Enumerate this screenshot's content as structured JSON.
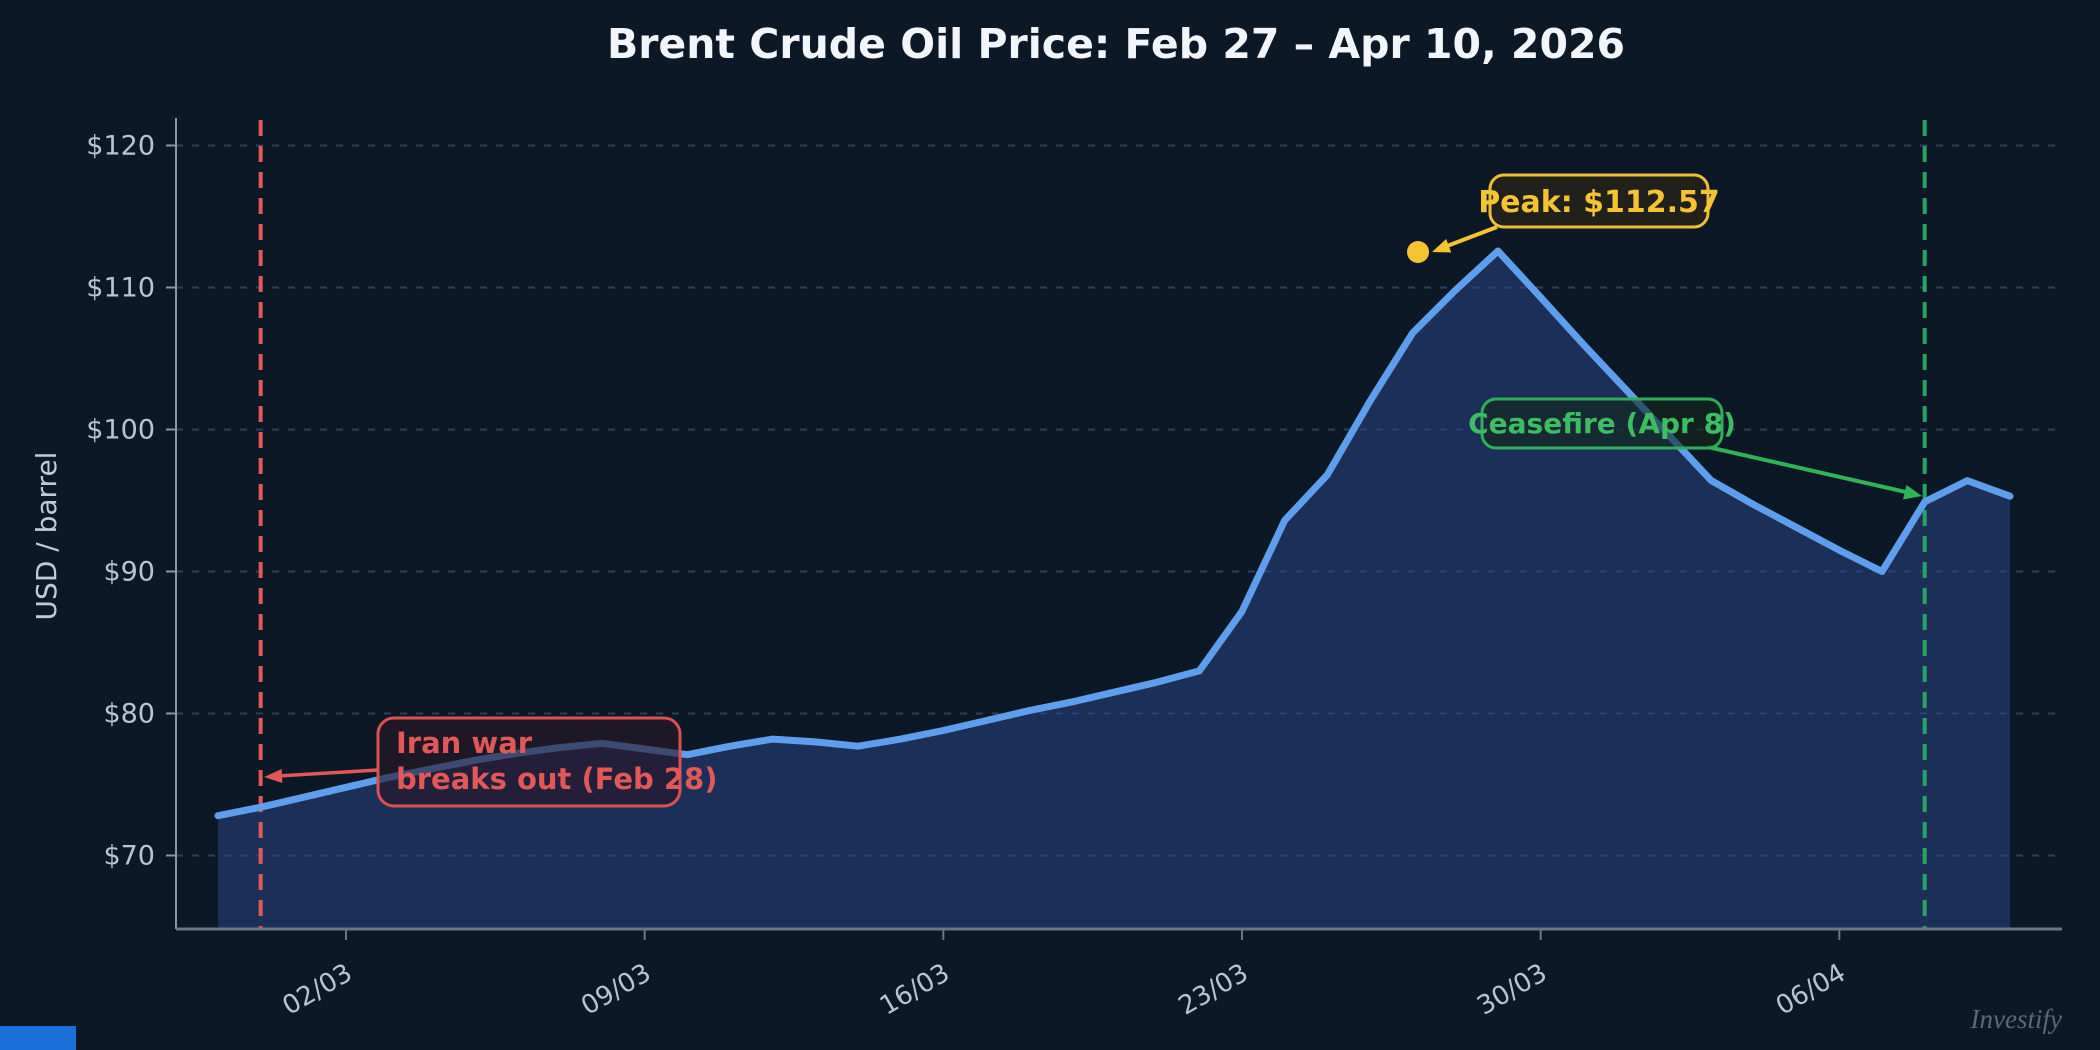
{
  "page": {
    "watermark": "Investify",
    "background": "#0d1826",
    "accent_square_color": "#1c6fd9"
  },
  "chart_data": {
    "type": "area",
    "title": "Brent Crude Oil Price: Feb 27 – Apr 10, 2026",
    "ylabel": "USD / barrel",
    "xlabel": "",
    "series_name": "Brent crude oil price (USD/barrel)",
    "x": [
      "Feb 27",
      "Feb 28",
      "Mar 1",
      "Mar 2",
      "Mar 3",
      "Mar 4",
      "Mar 5",
      "Mar 6",
      "Mar 7",
      "Mar 8",
      "Mar 9",
      "Mar 10",
      "Mar 11",
      "Mar 12",
      "Mar 13",
      "Mar 14",
      "Mar 15",
      "Mar 16",
      "Mar 17",
      "Mar 18",
      "Mar 19",
      "Mar 20",
      "Mar 21",
      "Mar 22",
      "Mar 23",
      "Mar 24",
      "Mar 25",
      "Mar 26",
      "Mar 27",
      "Mar 28",
      "Mar 29",
      "Mar 30",
      "Mar 31",
      "Apr 1",
      "Apr 2",
      "Apr 3",
      "Apr 4",
      "Apr 5",
      "Apr 6",
      "Apr 7",
      "Apr 8",
      "Apr 9",
      "Apr 10"
    ],
    "values": [
      72.8,
      73.4,
      74.1,
      74.8,
      75.5,
      76.1,
      76.7,
      77.2,
      77.6,
      77.9,
      77.5,
      77.1,
      77.7,
      78.2,
      78.0,
      77.7,
      78.2,
      78.8,
      79.5,
      80.2,
      80.8,
      81.5,
      82.2,
      83.0,
      87.2,
      93.6,
      96.8,
      102.0,
      106.8,
      109.8,
      112.57,
      109.3,
      106.0,
      102.8,
      99.6,
      96.4,
      94.7,
      93.1,
      91.5,
      90.0,
      94.9,
      96.4,
      95.3
    ],
    "ylim": [
      64.8,
      121.9
    ],
    "y_ticks": [
      70,
      80,
      90,
      100,
      110,
      120
    ],
    "y_tick_labels": [
      "$70",
      "$80",
      "$90",
      "$100",
      "$110",
      "$120"
    ],
    "x_tick_indices": [
      3,
      10,
      17,
      24,
      31,
      38
    ],
    "x_tick_labels": [
      "02/03",
      "09/03",
      "16/03",
      "23/03",
      "30/03",
      "06/04"
    ],
    "grid": "horizontal-dashed",
    "legend": "none",
    "vlines": [
      {
        "id": "war-start",
        "x_index": 1,
        "date": "Feb 28",
        "color": "#e25757",
        "style": "dashed"
      },
      {
        "id": "ceasefire",
        "x_index": 40,
        "date": "Apr 8",
        "color": "#2aa263",
        "style": "dashed"
      }
    ],
    "annotations": [
      {
        "id": "iran-war",
        "line1": "Iran war",
        "line2": "breaks out (Feb 28)",
        "color": "#e25757",
        "x_index": 1
      },
      {
        "id": "peak",
        "label": "Peak: $112.57",
        "value": 112.57,
        "color": "#f5c431",
        "x_index": 30
      },
      {
        "id": "ceasefire",
        "label": "Ceasefire (Apr 8)",
        "color": "#3dbd61",
        "x_index": 40
      }
    ],
    "colors": {
      "line": "#5f9ded",
      "area": "rgba(43,69,140,0.5)",
      "grid": "#2e4668",
      "axis": "#8a95a6",
      "axis_bottom": "#6b7584",
      "tick_label": "#b9c3d2",
      "title": "#f2f5f9",
      "red": "#e25757",
      "gold": "#f5c431",
      "gold_border": "#edbe36",
      "green_text": "#3dbd61",
      "green_line": "#2aa263",
      "green_arrow": "#2fb457",
      "watermark": "#5a6878"
    }
  }
}
